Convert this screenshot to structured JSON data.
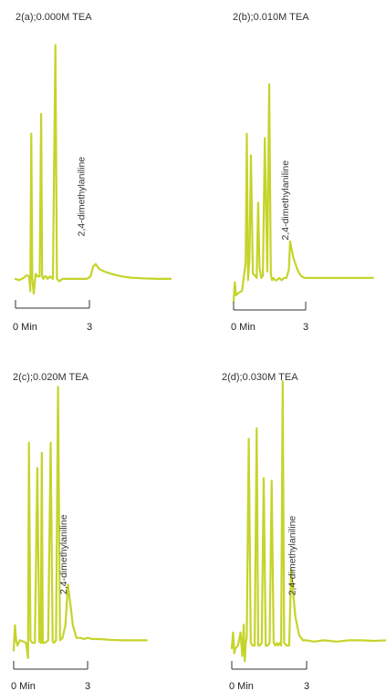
{
  "chart_data": [
    {
      "type": "line",
      "title": "2(a);0.000M TEA",
      "x_ticks": [
        {
          "label": "0 Min",
          "value": 0
        },
        {
          "label": "3",
          "value": 3
        }
      ],
      "xlim": [
        -0.2,
        6.5
      ],
      "ylim": [
        0,
        100
      ],
      "annotation": {
        "text": "2,4-dimethylaniline",
        "x": 2.9
      },
      "color": "#c5d42a",
      "series": [
        {
          "x": [
            0,
            0.15,
            0.35,
            0.45,
            0.55,
            0.6,
            0.64,
            0.68,
            0.74,
            0.82,
            0.9,
            0.98,
            1.04,
            1.08,
            1.13,
            1.18,
            1.24,
            1.3,
            1.4,
            1.52,
            1.62,
            1.68,
            1.78,
            1.9,
            2.2,
            2.6,
            2.9,
            3.05,
            3.15,
            3.25,
            3.4,
            3.6,
            3.9,
            4.3,
            4.7,
            5.2,
            5.8,
            6.3
          ],
          "y": [
            3,
            2.5,
            3.5,
            4.5,
            4,
            -2,
            62,
            3,
            -3,
            5,
            4,
            4,
            70,
            4,
            3,
            4,
            4,
            3,
            4,
            3,
            98,
            3,
            2,
            3,
            3,
            3,
            3,
            4,
            8,
            9,
            7,
            6,
            5,
            4,
            3.5,
            3.2,
            3,
            3
          ]
        }
      ]
    },
    {
      "type": "line",
      "title": "2(b);0.010M TEA",
      "x_ticks": [
        {
          "label": "0 Min",
          "value": 0
        },
        {
          "label": "3",
          "value": 3
        }
      ],
      "xlim": [
        -0.2,
        6.5
      ],
      "ylim": [
        0,
        100
      ],
      "annotation": {
        "text": "2,4-dimethylaniline",
        "x": 2.4
      },
      "color": "#c5d42a",
      "series": [
        {
          "x": [
            0,
            0.05,
            0.1,
            0.2,
            0.35,
            0.5,
            0.55,
            0.6,
            0.66,
            0.72,
            0.8,
            0.9,
            0.96,
            1.02,
            1.08,
            1.15,
            1.22,
            1.3,
            1.4,
            1.48,
            1.55,
            1.6,
            1.66,
            1.72,
            1.8,
            1.9,
            2.0,
            2.1,
            2.2,
            2.3,
            2.35,
            2.4,
            2.5,
            2.65,
            2.8,
            2.95,
            3.1,
            3.4,
            3.8,
            4.3,
            4.8,
            5.3,
            5.8
          ],
          "y": [
            -8,
            1,
            -5,
            -4,
            -3,
            10,
            70,
            2,
            12,
            60,
            5,
            4,
            3,
            38,
            8,
            3,
            4,
            68,
            6,
            93,
            5,
            2,
            3,
            2,
            2,
            3,
            2,
            3,
            3,
            7,
            20,
            17,
            12,
            7,
            4,
            3,
            3,
            3,
            3,
            3,
            3,
            3,
            3
          ]
        }
      ]
    },
    {
      "type": "line",
      "title": "2(c);0.020M TEA",
      "x_ticks": [
        {
          "label": "0 Min",
          "value": 0
        },
        {
          "label": "3",
          "value": 3
        }
      ],
      "xlim": [
        -0.2,
        6.5
      ],
      "ylim": [
        0,
        100
      ],
      "annotation": {
        "text": "2,4-dimethylaniline",
        "x": 2.25
      },
      "color": "#c5d42a",
      "series": [
        {
          "x": [
            0,
            0.05,
            0.1,
            0.15,
            0.25,
            0.4,
            0.5,
            0.58,
            0.62,
            0.68,
            0.76,
            0.86,
            0.96,
            1.04,
            1.1,
            1.14,
            1.18,
            1.26,
            1.4,
            1.5,
            1.58,
            1.64,
            1.72,
            1.8,
            1.88,
            1.98,
            2.1,
            2.2,
            2.32,
            2.4,
            2.55,
            2.7,
            2.85,
            3.0,
            3.2,
            3.5,
            3.9,
            4.4,
            4.9,
            5.4
          ],
          "y": [
            -2,
            8,
            2,
            0,
            2,
            1.5,
            1,
            -5,
            80,
            2,
            1,
            1,
            70,
            1.5,
            1,
            76,
            1,
            1,
            2,
            80,
            1.5,
            1,
            2,
            102,
            2,
            3,
            8,
            24,
            15,
            8,
            3,
            3,
            2.5,
            3,
            2.5,
            2.5,
            2.2,
            2,
            2,
            2
          ]
        }
      ]
    },
    {
      "type": "line",
      "title": "2(d);0.030M TEA",
      "x_ticks": [
        {
          "label": "0 Min",
          "value": 0
        },
        {
          "label": "3",
          "value": 3
        }
      ],
      "xlim": [
        -0.2,
        6.5
      ],
      "ylim": [
        0,
        100
      ],
      "annotation": {
        "text": "2,4-dimethylaniline",
        "x": 2.65
      },
      "color": "#c5d42a",
      "series": [
        {
          "x": [
            0,
            0.05,
            0.1,
            0.15,
            0.25,
            0.35,
            0.42,
            0.48,
            0.52,
            0.56,
            0.6,
            0.68,
            0.76,
            0.84,
            0.92,
            1.0,
            1.06,
            1.12,
            1.2,
            1.28,
            1.36,
            1.44,
            1.52,
            1.6,
            1.68,
            1.74,
            1.8,
            1.86,
            1.92,
            1.98,
            2.04,
            2.1,
            2.2,
            2.3,
            2.38,
            2.45,
            2.55,
            2.7,
            2.85,
            3.0,
            3.3,
            3.7,
            4.2,
            4.7,
            5.2,
            5.7,
            6.2
          ],
          "y": [
            0,
            6,
            -2,
            0,
            1,
            6,
            -3,
            9,
            -5,
            2,
            4,
            80,
            2,
            1,
            1,
            84,
            1,
            1,
            2,
            65,
            1,
            1,
            2,
            64,
            2,
            1,
            2,
            1,
            2,
            1,
            102,
            2,
            1,
            1,
            30,
            22,
            12,
            5,
            3,
            3,
            2.5,
            3,
            2.5,
            3,
            3,
            2.8,
            3
          ]
        }
      ]
    }
  ]
}
